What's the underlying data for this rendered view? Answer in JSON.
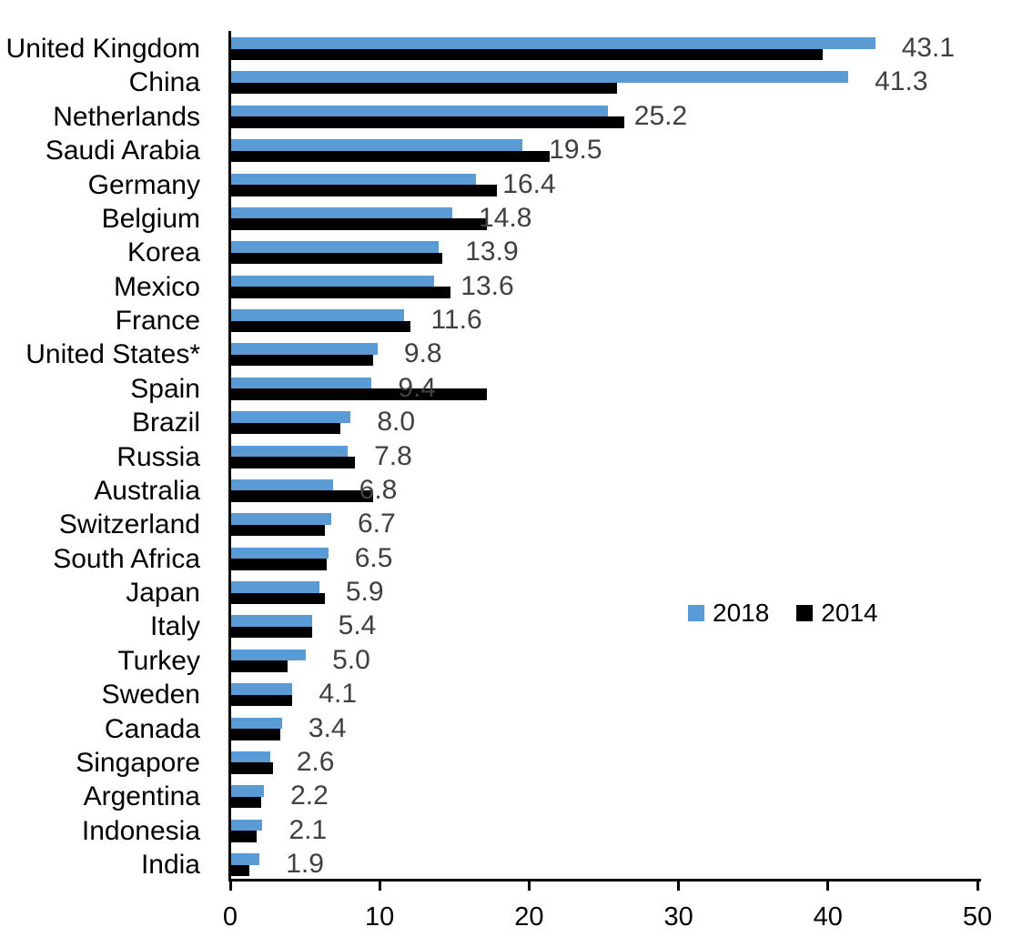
{
  "chart_data": {
    "type": "bar",
    "orientation": "horizontal",
    "title": "",
    "xlabel": "",
    "ylabel": "",
    "xlim": [
      0,
      50
    ],
    "x_ticks": [
      "0",
      "10",
      "20",
      "30",
      "40",
      "50"
    ],
    "grid": false,
    "categories": [
      "United Kingdom",
      "China",
      "Netherlands",
      "Saudi Arabia",
      "Germany",
      "Belgium",
      "Korea",
      "Mexico",
      "France",
      "United States*",
      "Spain",
      "Brazil",
      "Russia",
      "Australia",
      "Switzerland",
      "South Africa",
      "Japan",
      "Italy",
      "Turkey",
      "Sweden",
      "Canada",
      "Singapore",
      "Argentina",
      "Indonesia",
      "India"
    ],
    "series": [
      {
        "name": "2018",
        "color": "#5B9BD5",
        "values": [
          43.1,
          41.3,
          25.2,
          19.5,
          16.4,
          14.8,
          13.9,
          13.6,
          11.6,
          9.8,
          9.4,
          8.0,
          7.8,
          6.8,
          6.7,
          6.5,
          5.9,
          5.4,
          5.0,
          4.1,
          3.4,
          2.6,
          2.2,
          2.1,
          1.9
        ]
      },
      {
        "name": "2014",
        "color": "#000000",
        "values": [
          39.6,
          25.8,
          26.3,
          21.3,
          17.8,
          17.1,
          14.1,
          14.7,
          12.0,
          9.5,
          17.1,
          7.3,
          8.3,
          9.5,
          6.3,
          6.4,
          6.3,
          5.4,
          3.8,
          4.1,
          3.3,
          2.8,
          2.0,
          1.7,
          1.2
        ]
      }
    ],
    "data_labels": {
      "attached_to_series": "2018",
      "values": [
        "43.1",
        "41.3",
        "25.2",
        "19.5",
        "16.4",
        "14.8",
        "13.9",
        "13.6",
        "11.6",
        "9.8",
        "9.4",
        "8.0",
        "7.8",
        "6.8",
        "6.7",
        "6.5",
        "5.9",
        "5.4",
        "5.0",
        "4.1",
        "3.4",
        "2.6",
        "2.2",
        "2.1",
        "1.9"
      ],
      "color": "#404040"
    },
    "legend": {
      "position": "middle-right",
      "entries": [
        "2018",
        "2014"
      ]
    },
    "axis_color": "#000000",
    "background_color": "#ffffff"
  }
}
